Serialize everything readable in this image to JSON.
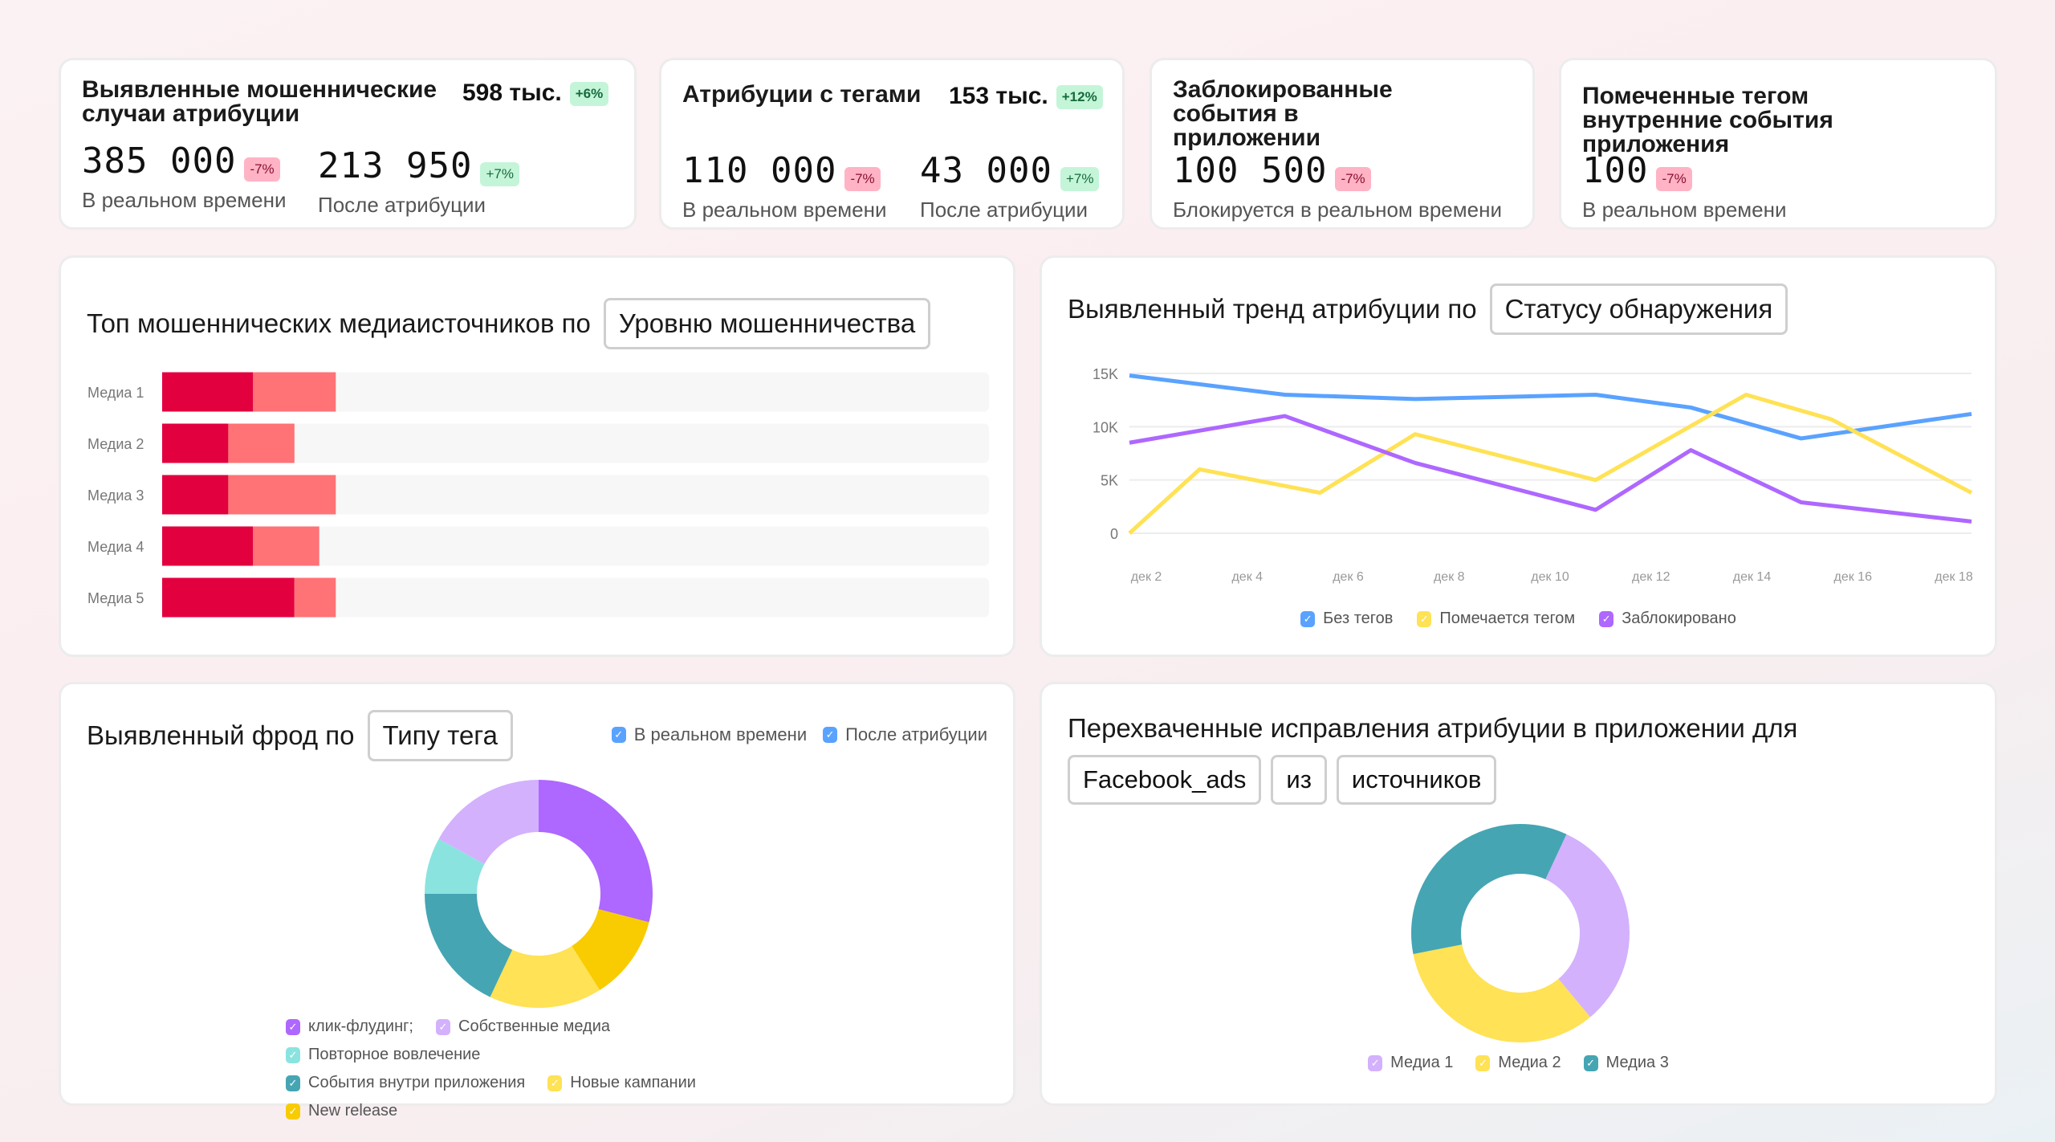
{
  "kpis": [
    {
      "title": "Выявленные мошеннические случаи атрибуции",
      "total": "598 тыс.",
      "total_badge": "+6%",
      "metrics": [
        {
          "value": "385 000",
          "badge": "-7%",
          "label": "В реальном времени"
        },
        {
          "value": "213 950",
          "badge": "+7%",
          "label": "После атрибуции"
        }
      ]
    },
    {
      "title": "Атрибуции с тегами",
      "total": "153 тыс.",
      "total_badge": "+12%",
      "metrics": [
        {
          "value": "110 000",
          "badge": "-7%",
          "label": "В реальном времени"
        },
        {
          "value": "43 000",
          "badge": "+7%",
          "label": "После атрибуции"
        }
      ]
    },
    {
      "title": "Заблокированные события в приложении",
      "metrics": [
        {
          "value": "100 500",
          "badge": "-7%",
          "label": "Блокируется в реальном времени"
        }
      ]
    },
    {
      "title": "Помеченные тегом внутренние события приложения",
      "metrics": [
        {
          "value": "100",
          "badge": "-7%",
          "label": "В реальном времени"
        }
      ]
    }
  ],
  "bar_panel": {
    "title": "Топ мошеннических медиаисточников по",
    "selector": "Уровню мошенничества"
  },
  "line_panel": {
    "title": "Выявленный тренд атрибуции по",
    "selector": "Статусу обнаружения"
  },
  "donut1_panel": {
    "title": "Выявленный фрод по",
    "selector": "Типу тега",
    "toggles": [
      {
        "label": "В реальном времени",
        "checked": true
      },
      {
        "label": "После атрибуции",
        "checked": true
      }
    ]
  },
  "donut2_panel": {
    "title": "Перехваченные исправления атрибуции в приложении для",
    "selectors": [
      "Facebook_ads",
      "из",
      "источников"
    ]
  },
  "colors": {
    "dark_red": "#e3003f",
    "light_red": "#ff7276",
    "track": "#f7f7f7",
    "blue": "#5aa2ff",
    "yellow": "#ffe255",
    "purple": "#ae67ff",
    "lavender": "#d3b1fd",
    "teal": "#45a5b3",
    "light_teal": "#8be3df",
    "gold": "#f8cc00"
  },
  "chart_data": [
    {
      "type": "bar",
      "stacked": true,
      "orientation": "horizontal",
      "categories": [
        "Медиа 1",
        "Медиа 2",
        "Медиа 3",
        "Медиа 4",
        "Медиа 5"
      ],
      "xlim": [
        0,
        100
      ],
      "series": [
        {
          "values": [
            11,
            8,
            8,
            11,
            16
          ],
          "color": "#e3003f"
        },
        {
          "values": [
            10,
            8,
            13,
            8,
            5
          ],
          "color": "#ff7276"
        }
      ]
    },
    {
      "type": "line",
      "x_unit": "день декабря",
      "xlim": [
        1.6,
        18.4
      ],
      "ylim": [
        0,
        15000
      ],
      "grid": true,
      "x_ticks": [
        "дек 2",
        "дек 4",
        "дек 6",
        "дек 8",
        "дек 10",
        "дек 12",
        "дек 14",
        "дек 16",
        "дек 18"
      ],
      "y_ticks": [
        "0",
        "5K",
        "10K",
        "15K"
      ],
      "legend_position": "bottom",
      "series": [
        {
          "name": "Без тегов",
          "color": "#5aa2ff",
          "points": [
            [
              1.6,
              14800
            ],
            [
              4.7,
              13000
            ],
            [
              7.3,
              12600
            ],
            [
              10.9,
              13000
            ],
            [
              12.8,
              11800
            ],
            [
              15.0,
              8900
            ],
            [
              18.4,
              11200
            ]
          ]
        },
        {
          "name": "Помечается тегом",
          "color": "#ffe255",
          "points": [
            [
              1.6,
              0
            ],
            [
              3.0,
              6000
            ],
            [
              5.4,
              3800
            ],
            [
              7.3,
              9300
            ],
            [
              10.9,
              5000
            ],
            [
              13.9,
              13000
            ],
            [
              15.6,
              10700
            ],
            [
              18.4,
              3800
            ]
          ]
        },
        {
          "name": "Заблокировано",
          "color": "#ae67ff",
          "points": [
            [
              1.6,
              8500
            ],
            [
              4.7,
              11000
            ],
            [
              7.3,
              6600
            ],
            [
              10.9,
              2200
            ],
            [
              12.8,
              7800
            ],
            [
              15.0,
              2900
            ],
            [
              18.4,
              1100
            ]
          ]
        }
      ]
    },
    {
      "type": "pie",
      "donut": true,
      "legend_position": "bottom",
      "slices": [
        {
          "name": "клик-флудинг;",
          "value": 29,
          "color": "#ae67ff"
        },
        {
          "name": "New release",
          "value": 12,
          "color": "#f8cc00"
        },
        {
          "name": "Новые кампании",
          "value": 16,
          "color": "#ffe255"
        },
        {
          "name": "События внутри приложения",
          "value": 18,
          "color": "#45a5b3"
        },
        {
          "name": "Повторное вовлечение",
          "value": 8,
          "color": "#8be3df"
        },
        {
          "name": "Собственные медиа",
          "value": 17,
          "color": "#d3b1fd"
        }
      ],
      "legend_order": [
        "клик-флудинг;",
        "Собственные медиа",
        "Повторное вовлечение",
        "События внутри приложения",
        "Новые кампании",
        "New release"
      ]
    },
    {
      "type": "pie",
      "donut": true,
      "legend_position": "bottom",
      "start_angle": 25,
      "slices": [
        {
          "name": "Медиа 1",
          "value": 32,
          "color": "#d3b1fd"
        },
        {
          "name": "Медиа 2",
          "value": 33,
          "color": "#ffe255"
        },
        {
          "name": "Медиа 3",
          "value": 35,
          "color": "#45a5b3"
        }
      ]
    }
  ]
}
